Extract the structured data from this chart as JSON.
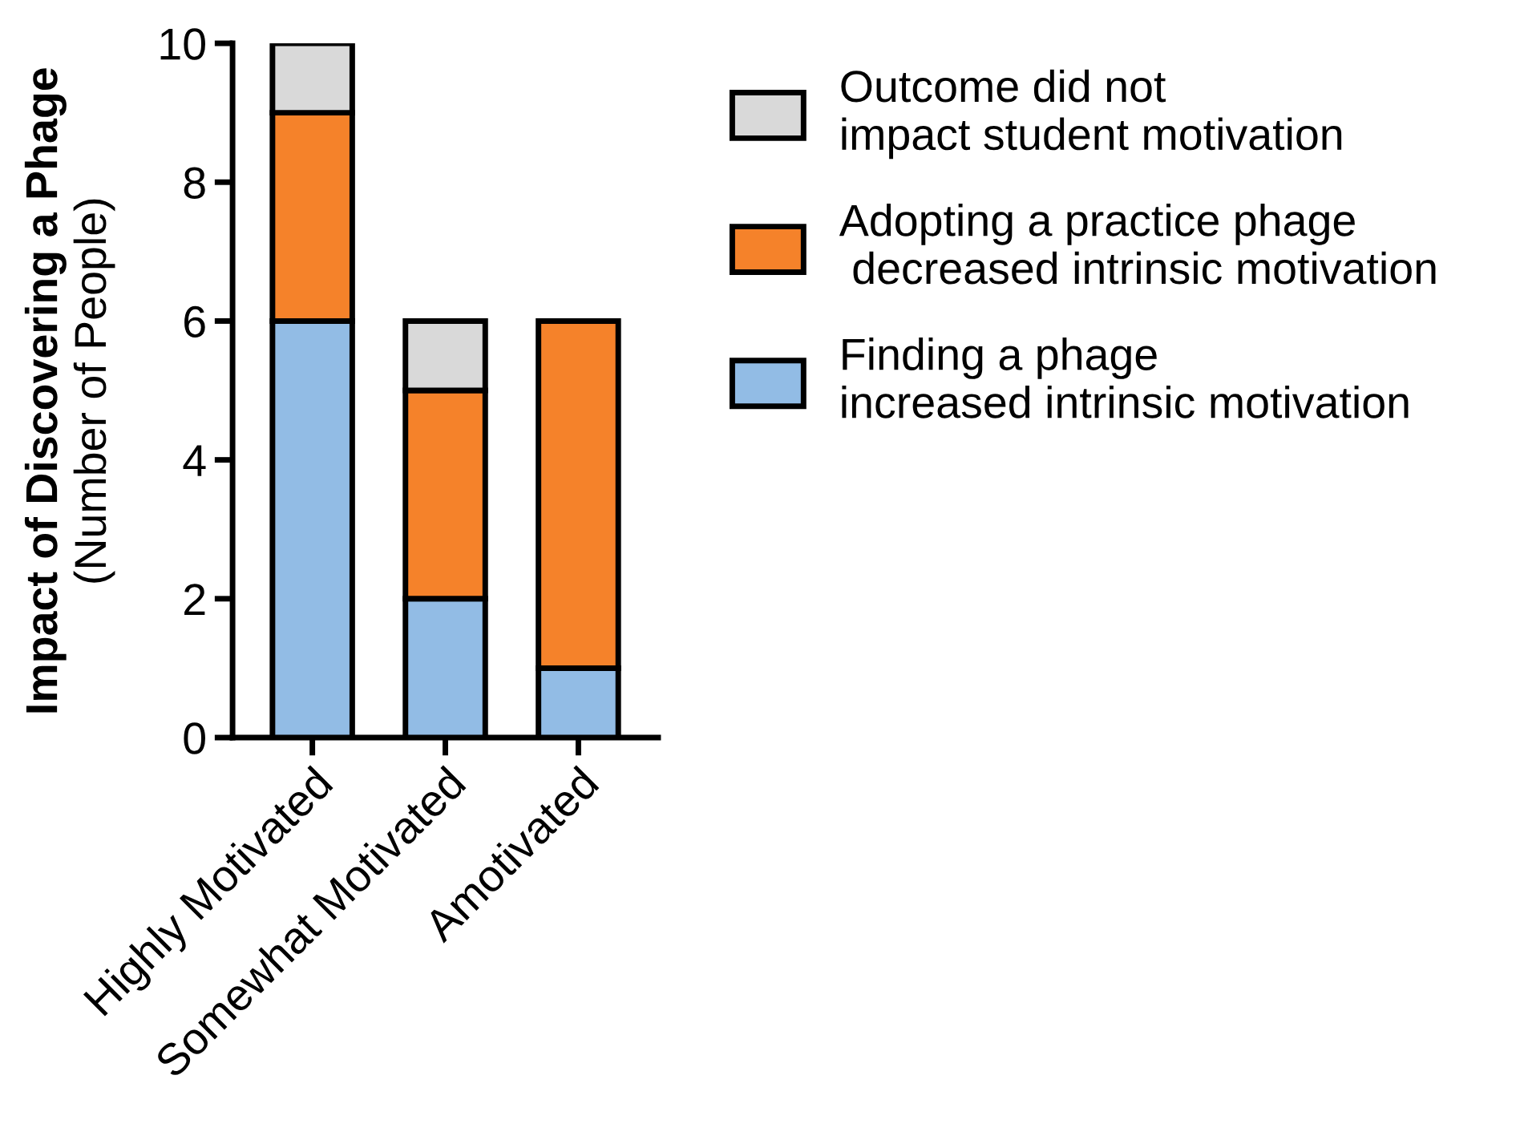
{
  "chart_data": {
    "type": "bar",
    "stacked": true,
    "ylabel": "Impact of Discovering a Phage\n(Number of People)",
    "categories": [
      "Highly Motivated",
      "Somewhat Motivated",
      "Amotivated"
    ],
    "series": [
      {
        "name": "Finding a phage\nincreased intrinsic motivation",
        "color": "#92bce5",
        "values": [
          6,
          2,
          1
        ]
      },
      {
        "name": "Adopting a practice phage\n decreased intrinsic motivation",
        "color": "#f5822a",
        "values": [
          3,
          3,
          5
        ]
      },
      {
        "name": "Outcome did not\nimpact student motivation",
        "color": "#d9d9d9",
        "values": [
          1,
          1,
          null
        ]
      }
    ],
    "ylim": [
      0,
      10
    ],
    "yticks": [
      0,
      2,
      4,
      6,
      8,
      10
    ],
    "grid": false,
    "legend": "right"
  }
}
